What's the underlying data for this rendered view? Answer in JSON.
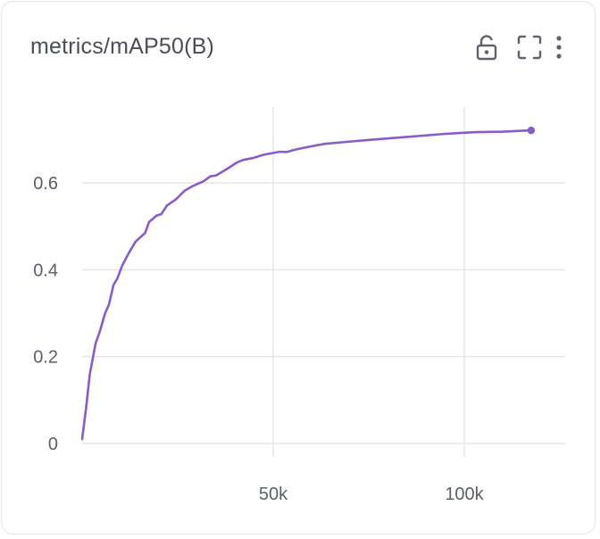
{
  "panel": {
    "title": "metrics/mAP50(B)",
    "icons": [
      "lock-open-icon",
      "fullscreen-icon",
      "more-vertical-icon"
    ]
  },
  "chart_data": {
    "type": "line",
    "title": "metrics/mAP50(B)",
    "xlabel": "",
    "ylabel": "",
    "xlim": [
      0,
      125000
    ],
    "ylim": [
      0,
      0.78
    ],
    "x_ticks": [
      50000,
      100000
    ],
    "x_tick_labels": [
      "50k",
      "100k"
    ],
    "y_ticks": [
      0,
      0.2,
      0.4,
      0.6
    ],
    "y_tick_labels": [
      "0",
      "0.2",
      "0.4",
      "0.6"
    ],
    "grid": true,
    "line_color": "#8a5cc7",
    "series": [
      {
        "values": [
          [
            0,
            0.01
          ],
          [
            1000,
            0.08
          ],
          [
            2000,
            0.16
          ],
          [
            3500,
            0.23
          ],
          [
            4700,
            0.26
          ],
          [
            6000,
            0.3
          ],
          [
            7000,
            0.32
          ],
          [
            8200,
            0.365
          ],
          [
            9200,
            0.38
          ],
          [
            10500,
            0.41
          ],
          [
            12300,
            0.44
          ],
          [
            14000,
            0.465
          ],
          [
            16500,
            0.485
          ],
          [
            17500,
            0.51
          ],
          [
            19500,
            0.525
          ],
          [
            20700,
            0.528
          ],
          [
            22200,
            0.548
          ],
          [
            24500,
            0.562
          ],
          [
            26800,
            0.582
          ],
          [
            29000,
            0.593
          ],
          [
            31800,
            0.604
          ],
          [
            33500,
            0.615
          ],
          [
            35000,
            0.617
          ],
          [
            37500,
            0.63
          ],
          [
            40500,
            0.647
          ],
          [
            42200,
            0.653
          ],
          [
            45000,
            0.658
          ],
          [
            47500,
            0.665
          ],
          [
            50000,
            0.669
          ],
          [
            51800,
            0.672
          ],
          [
            53500,
            0.671
          ],
          [
            55500,
            0.676
          ],
          [
            58000,
            0.681
          ],
          [
            61000,
            0.686
          ],
          [
            63500,
            0.69
          ],
          [
            66000,
            0.692
          ],
          [
            75000,
            0.699
          ],
          [
            85000,
            0.706
          ],
          [
            95000,
            0.713
          ],
          [
            103000,
            0.717
          ],
          [
            110000,
            0.718
          ],
          [
            117500,
            0.721
          ]
        ]
      }
    ]
  }
}
